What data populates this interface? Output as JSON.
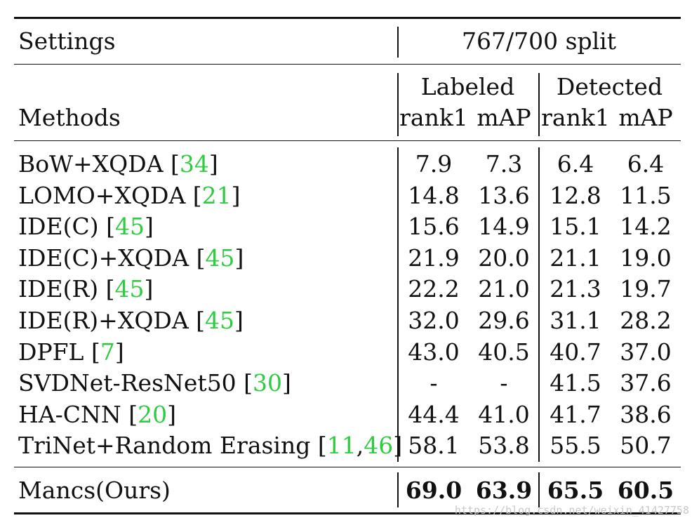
{
  "header": {
    "settings_label": "Settings",
    "split_label": "767/700 split",
    "methods_label": "Methods",
    "labeled_label": "Labeled",
    "detected_label": "Detected",
    "cols": [
      "rank1",
      "mAP",
      "rank1",
      "mAP"
    ]
  },
  "rows": [
    {
      "method": "BoW+XQDA ",
      "cites": [
        "34"
      ],
      "values": [
        "7.9",
        "7.3",
        "6.4",
        "6.4"
      ]
    },
    {
      "method": "LOMO+XQDA ",
      "cites": [
        "21"
      ],
      "values": [
        "14.8",
        "13.6",
        "12.8",
        "11.5"
      ]
    },
    {
      "method": "IDE(C) ",
      "cites": [
        "45"
      ],
      "values": [
        "15.6",
        "14.9",
        "15.1",
        "14.2"
      ]
    },
    {
      "method": "IDE(C)+XQDA ",
      "cites": [
        "45"
      ],
      "values": [
        "21.9",
        "20.0",
        "21.1",
        "19.0"
      ]
    },
    {
      "method": "IDE(R) ",
      "cites": [
        "45"
      ],
      "values": [
        "22.2",
        "21.0",
        "21.3",
        "19.7"
      ]
    },
    {
      "method": "IDE(R)+XQDA ",
      "cites": [
        "45"
      ],
      "values": [
        "32.0",
        "29.6",
        "31.1",
        "28.2"
      ]
    },
    {
      "method": "DPFL ",
      "cites": [
        "7"
      ],
      "values": [
        "43.0",
        "40.5",
        "40.7",
        "37.0"
      ]
    },
    {
      "method": "SVDNet-ResNet50 ",
      "cites": [
        "30"
      ],
      "values": [
        "-",
        "-",
        "41.5",
        "37.6"
      ]
    },
    {
      "method": "HA-CNN ",
      "cites": [
        "20"
      ],
      "values": [
        "44.4",
        "41.0",
        "41.7",
        "38.6"
      ]
    },
    {
      "method": "TriNet+Random Erasing ",
      "cites": [
        "11",
        "46"
      ],
      "values": [
        "58.1",
        "53.8",
        "55.5",
        "50.7"
      ]
    }
  ],
  "ours": {
    "method": "Mancs(Ours)",
    "values": [
      "69.0",
      "63.9",
      "65.5",
      "60.5"
    ]
  },
  "watermark": "https://blog.csdn.net/weixin_41427758"
}
